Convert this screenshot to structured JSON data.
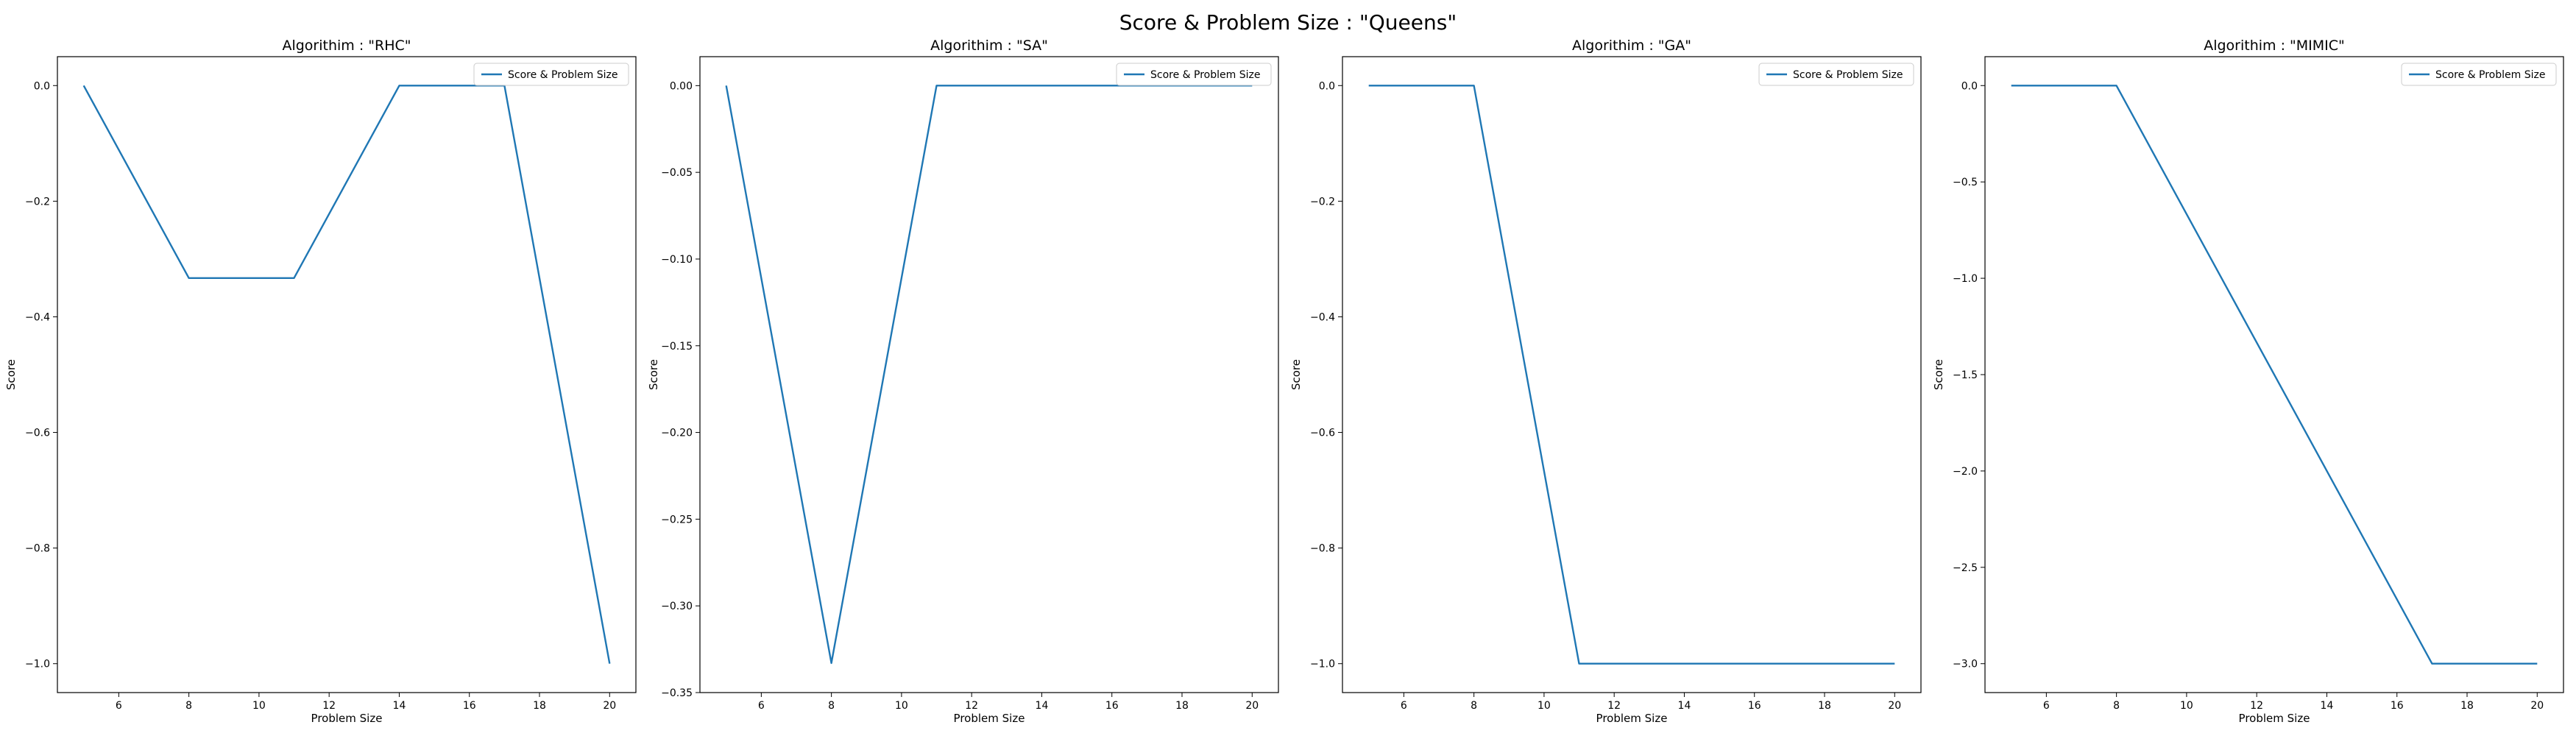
{
  "figure": {
    "title": "Score & Problem Size : \"Queens\""
  },
  "colors": {
    "series": "#1f77b4",
    "frame": "#000000",
    "legend_border": "#cccccc"
  },
  "chart_data": [
    {
      "type": "line",
      "title": "Algorithim : \"RHC\"",
      "xlabel": "Problem Size",
      "ylabel": "Score",
      "xlim": [
        4.25,
        20.75
      ],
      "ylim": [
        -1.05,
        0.05
      ],
      "xticks": [
        6,
        8,
        10,
        12,
        14,
        16,
        18,
        20
      ],
      "xtick_labels": [
        "6",
        "8",
        "10",
        "12",
        "14",
        "16",
        "18",
        "20"
      ],
      "yticks": [
        0.0,
        -0.2,
        -0.4,
        -0.6,
        -0.8,
        -1.0
      ],
      "ytick_labels": [
        "0.0",
        "−0.2",
        "−0.4",
        "−0.6",
        "−0.8",
        "−1.0"
      ],
      "legend": "upper right",
      "grid": false,
      "series": [
        {
          "name": "Score & Problem Size",
          "x": [
            5,
            8,
            11,
            14,
            17,
            20
          ],
          "y": [
            0.0,
            -0.333,
            -0.333,
            0.0,
            0.0,
            -1.0
          ]
        }
      ]
    },
    {
      "type": "line",
      "title": "Algorithim : \"SA\"",
      "xlabel": "Problem Size",
      "ylabel": "Score",
      "xlim": [
        4.25,
        20.75
      ],
      "ylim": [
        -0.35,
        0.0167
      ],
      "xticks": [
        6,
        8,
        10,
        12,
        14,
        16,
        18,
        20
      ],
      "xtick_labels": [
        "6",
        "8",
        "10",
        "12",
        "14",
        "16",
        "18",
        "20"
      ],
      "yticks": [
        0.0,
        -0.05,
        -0.1,
        -0.15,
        -0.2,
        -0.25,
        -0.3,
        -0.35
      ],
      "ytick_labels": [
        "0.00",
        "−0.05",
        "−0.10",
        "−0.15",
        "−0.20",
        "−0.25",
        "−0.30",
        "−0.35"
      ],
      "legend": "upper right",
      "grid": false,
      "series": [
        {
          "name": "Score & Problem Size",
          "x": [
            5,
            8,
            11,
            14,
            17,
            20
          ],
          "y": [
            0.0,
            -0.333,
            0.0,
            0.0,
            0.0,
            0.0
          ]
        }
      ]
    },
    {
      "type": "line",
      "title": "Algorithim : \"GA\"",
      "xlabel": "Problem Size",
      "ylabel": "Score",
      "xlim": [
        4.25,
        20.75
      ],
      "ylim": [
        -1.05,
        0.05
      ],
      "xticks": [
        6,
        8,
        10,
        12,
        14,
        16,
        18,
        20
      ],
      "xtick_labels": [
        "6",
        "8",
        "10",
        "12",
        "14",
        "16",
        "18",
        "20"
      ],
      "yticks": [
        0.0,
        -0.2,
        -0.4,
        -0.6,
        -0.8,
        -1.0
      ],
      "ytick_labels": [
        "0.0",
        "−0.2",
        "−0.4",
        "−0.6",
        "−0.8",
        "−1.0"
      ],
      "legend": "upper right",
      "grid": false,
      "series": [
        {
          "name": "Score & Problem Size",
          "x": [
            5,
            8,
            11,
            14,
            17,
            20
          ],
          "y": [
            0.0,
            0.0,
            -1.0,
            -1.0,
            -1.0,
            -1.0
          ]
        }
      ]
    },
    {
      "type": "line",
      "title": "Algorithim : \"MIMIC\"",
      "xlabel": "Problem Size",
      "ylabel": "Score",
      "xlim": [
        4.25,
        20.75
      ],
      "ylim": [
        -3.15,
        0.15
      ],
      "xticks": [
        6,
        8,
        10,
        12,
        14,
        16,
        18,
        20
      ],
      "xtick_labels": [
        "6",
        "8",
        "10",
        "12",
        "14",
        "16",
        "18",
        "20"
      ],
      "yticks": [
        0.0,
        -0.5,
        -1.0,
        -1.5,
        -2.0,
        -2.5,
        -3.0
      ],
      "ytick_labels": [
        "0.0",
        "−0.5",
        "−1.0",
        "−1.5",
        "−2.0",
        "−2.5",
        "−3.0"
      ],
      "legend": "upper right",
      "grid": false,
      "series": [
        {
          "name": "Score & Problem Size",
          "x": [
            5,
            8,
            11,
            14,
            17,
            20
          ],
          "y": [
            0.0,
            0.0,
            -1.0,
            -2.0,
            -3.0,
            -3.0
          ]
        }
      ]
    }
  ]
}
